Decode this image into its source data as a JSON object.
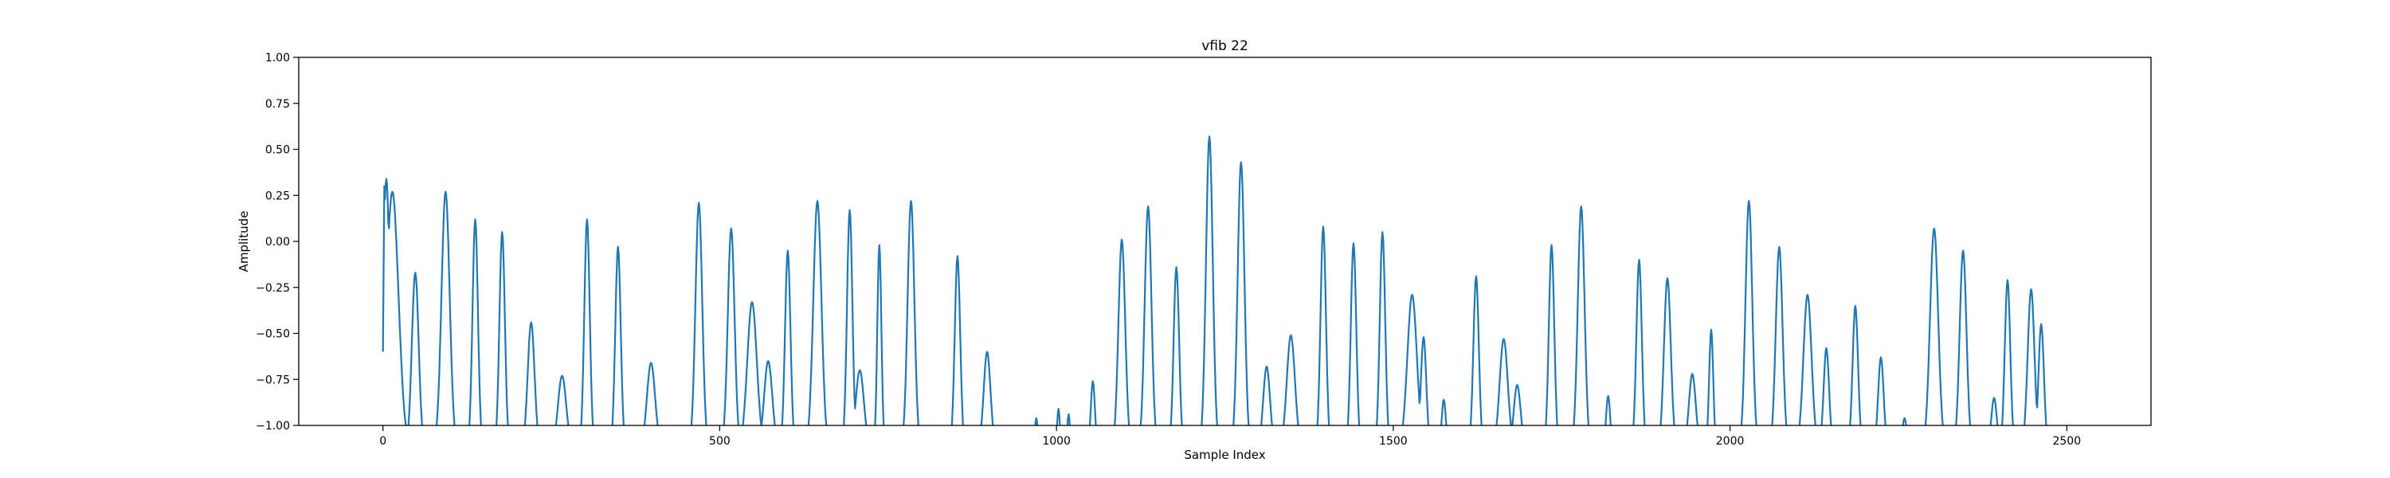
{
  "chart_data": {
    "type": "line",
    "title": "vfib 22",
    "xlabel": "Sample Index",
    "ylabel": "Amplitude",
    "xlim": [
      -125,
      2625
    ],
    "ylim": [
      -1.0,
      1.0
    ],
    "x_ticks": [
      0,
      500,
      1000,
      1500,
      2000,
      2500
    ],
    "y_ticks": [
      -1.0,
      -0.75,
      -0.5,
      -0.25,
      0.0,
      0.25,
      0.5,
      0.75,
      1.0
    ],
    "x_tick_labels": [
      "0",
      "500",
      "1000",
      "1500",
      "2000",
      "2500"
    ],
    "y_tick_labels": [
      "−1.00",
      "−0.75",
      "−0.50",
      "−0.25",
      "0.00",
      "0.25",
      "0.50",
      "0.75",
      "1.00"
    ],
    "grid": false,
    "line_color": "#1f77b4",
    "series": [
      {
        "x_start": 0,
        "x_end": 2499,
        "base": -1.12,
        "peaks": [
          {
            "c": 5,
            "p": 0.34,
            "w": 5
          },
          {
            "c": 14,
            "p": 0.27,
            "w": 9
          },
          {
            "c": 48,
            "p": -0.17,
            "w": 5
          },
          {
            "c": 93,
            "p": 0.27,
            "w": 6
          },
          {
            "c": 137,
            "p": 0.12,
            "w": 4
          },
          {
            "c": 177,
            "p": 0.05,
            "w": 4
          },
          {
            "c": 220,
            "p": -0.44,
            "w": 5
          },
          {
            "c": 266,
            "p": -0.73,
            "w": 6
          },
          {
            "c": 303,
            "p": 0.12,
            "w": 4
          },
          {
            "c": 349,
            "p": -0.03,
            "w": 4
          },
          {
            "c": 398,
            "p": -0.66,
            "w": 6
          },
          {
            "c": 469,
            "p": 0.21,
            "w": 5
          },
          {
            "c": 517,
            "p": 0.07,
            "w": 5
          },
          {
            "c": 548,
            "p": -0.33,
            "w": 7
          },
          {
            "c": 572,
            "p": -0.65,
            "w": 6
          },
          {
            "c": 601,
            "p": -0.05,
            "w": 4
          },
          {
            "c": 645,
            "p": 0.22,
            "w": 6
          },
          {
            "c": 693,
            "p": 0.17,
            "w": 4
          },
          {
            "c": 708,
            "p": -0.7,
            "w": 6
          },
          {
            "c": 737,
            "p": -0.02,
            "w": 3
          },
          {
            "c": 784,
            "p": 0.22,
            "w": 5
          },
          {
            "c": 853,
            "p": -0.08,
            "w": 4
          },
          {
            "c": 897,
            "p": -0.6,
            "w": 5
          },
          {
            "c": 970,
            "p": -0.96,
            "w": 2
          },
          {
            "c": 1003,
            "p": -0.91,
            "w": 2
          },
          {
            "c": 1018,
            "p": -0.94,
            "w": 2
          },
          {
            "c": 1054,
            "p": -0.76,
            "w": 3
          },
          {
            "c": 1097,
            "p": 0.01,
            "w": 5
          },
          {
            "c": 1136,
            "p": 0.19,
            "w": 5
          },
          {
            "c": 1178,
            "p": -0.14,
            "w": 4
          },
          {
            "c": 1227,
            "p": 0.57,
            "w": 5
          },
          {
            "c": 1274,
            "p": 0.43,
            "w": 5
          },
          {
            "c": 1312,
            "p": -0.68,
            "w": 5
          },
          {
            "c": 1348,
            "p": -0.51,
            "w": 6
          },
          {
            "c": 1396,
            "p": 0.08,
            "w": 4
          },
          {
            "c": 1441,
            "p": -0.01,
            "w": 4
          },
          {
            "c": 1484,
            "p": 0.05,
            "w": 4
          },
          {
            "c": 1528,
            "p": -0.29,
            "w": 7
          },
          {
            "c": 1545,
            "p": -0.52,
            "w": 4
          },
          {
            "c": 1575,
            "p": -0.86,
            "w": 3
          },
          {
            "c": 1623,
            "p": -0.19,
            "w": 4
          },
          {
            "c": 1664,
            "p": -0.53,
            "w": 6
          },
          {
            "c": 1684,
            "p": -0.78,
            "w": 5
          },
          {
            "c": 1735,
            "p": -0.02,
            "w": 4
          },
          {
            "c": 1779,
            "p": 0.19,
            "w": 5
          },
          {
            "c": 1819,
            "p": -0.84,
            "w": 3
          },
          {
            "c": 1865,
            "p": -0.1,
            "w": 4
          },
          {
            "c": 1907,
            "p": -0.2,
            "w": 5
          },
          {
            "c": 1944,
            "p": -0.72,
            "w": 5
          },
          {
            "c": 1972,
            "p": -0.48,
            "w": 3
          },
          {
            "c": 2028,
            "p": 0.22,
            "w": 5
          },
          {
            "c": 2073,
            "p": -0.03,
            "w": 5
          },
          {
            "c": 2115,
            "p": -0.29,
            "w": 6
          },
          {
            "c": 2143,
            "p": -0.58,
            "w": 4
          },
          {
            "c": 2186,
            "p": -0.35,
            "w": 4
          },
          {
            "c": 2224,
            "p": -0.63,
            "w": 4
          },
          {
            "c": 2259,
            "p": -0.96,
            "w": 3
          },
          {
            "c": 2303,
            "p": 0.07,
            "w": 6
          },
          {
            "c": 2346,
            "p": -0.05,
            "w": 5
          },
          {
            "c": 2392,
            "p": -0.85,
            "w": 4
          },
          {
            "c": 2412,
            "p": -0.21,
            "w": 4
          },
          {
            "c": 2447,
            "p": -0.26,
            "w": 5
          },
          {
            "c": 2462,
            "p": -0.45,
            "w": 4
          }
        ],
        "gaps": [
          [
            920,
            960
          ],
          [
            1038,
            1045
          ]
        ]
      }
    ]
  }
}
